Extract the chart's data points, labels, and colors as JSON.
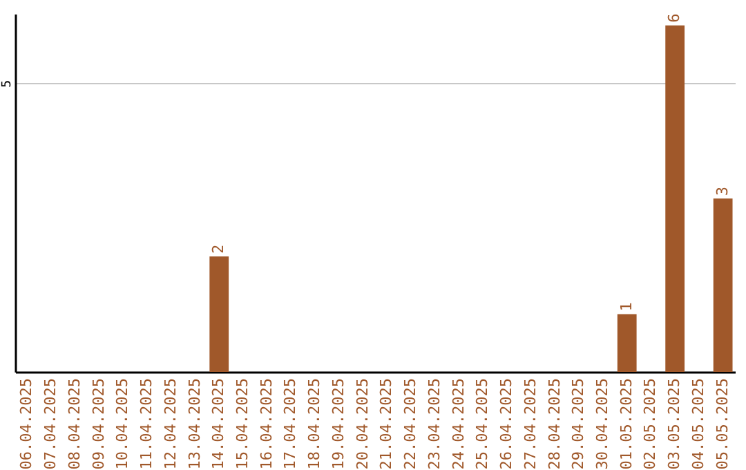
{
  "chart_data": {
    "type": "bar",
    "categories": [
      "06.04.2025",
      "07.04.2025",
      "08.04.2025",
      "09.04.2025",
      "10.04.2025",
      "11.04.2025",
      "12.04.2025",
      "13.04.2025",
      "14.04.2025",
      "15.04.2025",
      "16.04.2025",
      "17.04.2025",
      "18.04.2025",
      "19.04.2025",
      "20.04.2025",
      "21.04.2025",
      "22.04.2025",
      "23.04.2025",
      "24.04.2025",
      "25.04.2025",
      "26.04.2025",
      "27.04.2025",
      "28.04.2025",
      "29.04.2025",
      "30.04.2025",
      "01.05.2025",
      "02.05.2025",
      "03.05.2025",
      "04.05.2025",
      "05.05.2025"
    ],
    "values": [
      0,
      0,
      0,
      0,
      0,
      0,
      0,
      0,
      2,
      0,
      0,
      0,
      0,
      0,
      0,
      0,
      0,
      0,
      0,
      0,
      0,
      0,
      0,
      0,
      0,
      1,
      0,
      6,
      0,
      3
    ],
    "value_labels": [
      null,
      null,
      null,
      null,
      null,
      null,
      null,
      null,
      "2",
      null,
      null,
      null,
      null,
      null,
      null,
      null,
      null,
      null,
      null,
      null,
      null,
      null,
      null,
      null,
      null,
      "1",
      null,
      "6",
      null,
      "3"
    ],
    "color": "#a0582a",
    "ylim": [
      0,
      6.2
    ],
    "yticks": [
      5
    ],
    "grid": "y"
  }
}
